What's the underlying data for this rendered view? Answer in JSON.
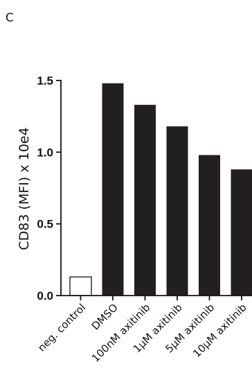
{
  "panel_label": "C",
  "colors": {
    "bar_fill": "#231f20",
    "bar_open_fill": "#ffffff",
    "axis": "#111111"
  },
  "chart_data": {
    "type": "bar",
    "categories": [
      "neg. control",
      "DMSO",
      "100nM axitinib",
      "1µM axitinib",
      "5µM axitinib",
      "10µM axitinib"
    ],
    "values": [
      0.13,
      1.48,
      1.33,
      1.18,
      0.98,
      0.88
    ],
    "bar_styles": [
      "open",
      "filled",
      "filled",
      "filled",
      "filled",
      "filled"
    ],
    "title": "",
    "xlabel": "",
    "ylabel": "CD83 (MFI) x 10e4",
    "ylim": [
      0,
      1.5
    ],
    "yticks": [
      "0.0",
      "0.5",
      "1.0",
      "1.5"
    ],
    "grid": false,
    "legend": "none"
  }
}
